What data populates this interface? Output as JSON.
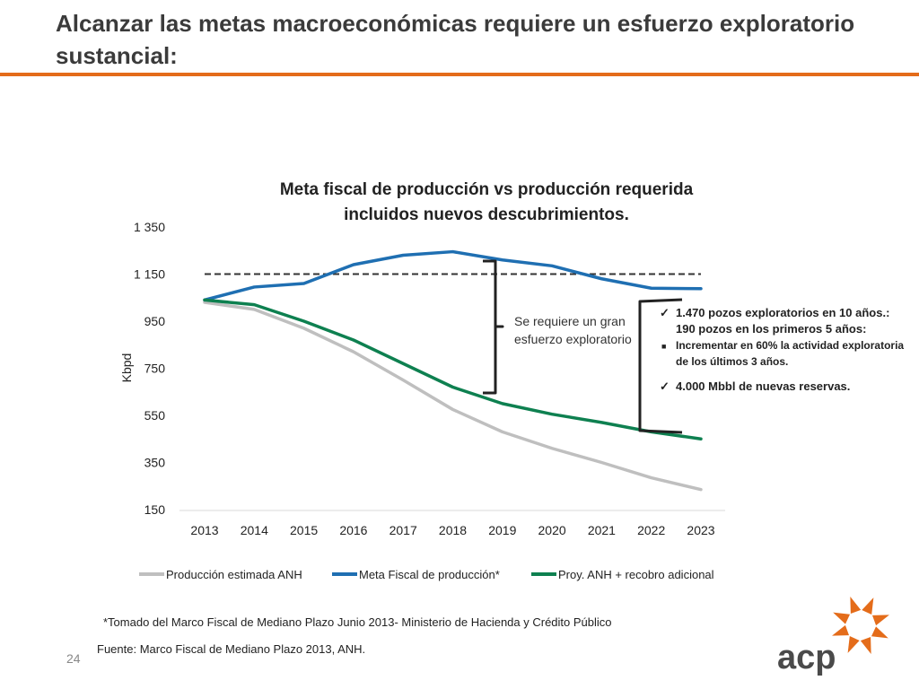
{
  "slide": {
    "title": "Alcanzar las metas macroeconómicas requiere un esfuerzo exploratorio sustancial:",
    "page_number": "24",
    "footnote": "*Tomado del Marco Fiscal de Mediano Plazo Junio 2013- Ministerio de Hacienda y Crédito Público",
    "source": "Fuente: Marco Fiscal de Mediano Plazo 2013, ANH.",
    "logo_text": "acp",
    "accent_color": "#e46c1a"
  },
  "annotation": {
    "brace_text": "Se requiere un gran esfuerzo exploratorio"
  },
  "bullets": [
    {
      "marker": "check",
      "text": "1.470 pozos exploratorios  en  10 años.: 190 pozos en los primeros 5 años:"
    },
    {
      "marker": "square",
      "text": "Incrementar en 60% la actividad exploratoria de los últimos 3 años."
    },
    {
      "marker": "check",
      "text": "4.000 Mbbl de nuevas reservas."
    }
  ],
  "chart_data": {
    "type": "line",
    "title": "Meta fiscal de producción vs producción requerida incluidos nuevos descubrimientos.",
    "title_lines": [
      "Meta fiscal de producción vs producción requerida",
      "incluidos nuevos descubrimientos."
    ],
    "xlabel": "",
    "ylabel": "Kbpd",
    "ylim": [
      150,
      1350
    ],
    "yticks": [
      150,
      350,
      550,
      750,
      950,
      1150,
      1350
    ],
    "ytick_labels": [
      "150",
      "350",
      "550",
      "750",
      "950",
      "1 150",
      "1 350"
    ],
    "categories": [
      "2013",
      "2014",
      "2015",
      "2016",
      "2017",
      "2018",
      "2019",
      "2020",
      "2021",
      "2022",
      "2023"
    ],
    "series": [
      {
        "name": "Producción estimada ANH",
        "color": "#bfbfbf",
        "values": [
          1030,
          1000,
          920,
          820,
          700,
          575,
          480,
          410,
          350,
          285,
          235
        ]
      },
      {
        "name": "Meta Fiscal de producción*",
        "color": "#1f6fb2",
        "values": [
          1040,
          1095,
          1110,
          1190,
          1230,
          1245,
          1210,
          1185,
          1130,
          1090,
          1088
        ]
      },
      {
        "name": "Proy. ANH + recobro adicional",
        "color": "#0e8050",
        "values": [
          1040,
          1020,
          950,
          870,
          770,
          670,
          600,
          555,
          520,
          480,
          450
        ]
      }
    ],
    "reference_line": {
      "value": 1150,
      "style": "dashed",
      "color": "#333333"
    },
    "legend_position": "bottom",
    "grid": false
  }
}
